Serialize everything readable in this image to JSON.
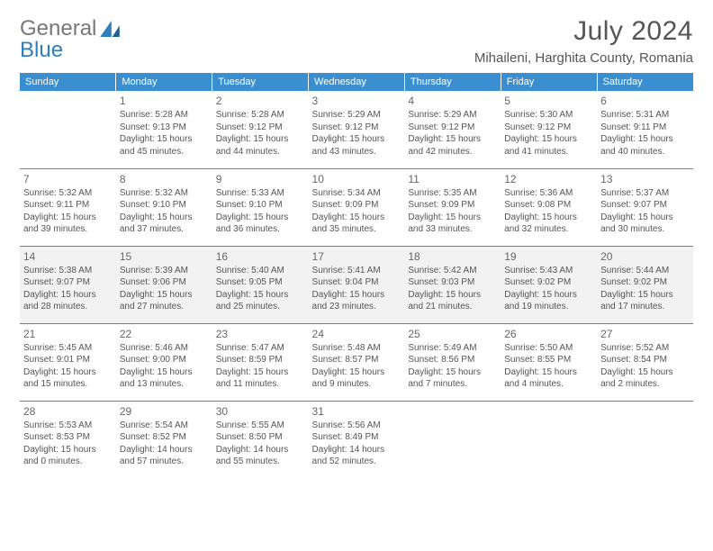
{
  "brand": {
    "text1": "General",
    "text2": "Blue"
  },
  "title": {
    "month": "July 2024",
    "location": "Mihaileni, Harghita County, Romania"
  },
  "colors": {
    "header_bg": "#3a8fd0",
    "divider": "#3a8fd0",
    "shade": "#f2f2f2",
    "text": "#555555"
  },
  "weekdays": [
    "Sunday",
    "Monday",
    "Tuesday",
    "Wednesday",
    "Thursday",
    "Friday",
    "Saturday"
  ],
  "weeks": [
    [
      null,
      {
        "n": "1",
        "sr": "Sunrise: 5:28 AM",
        "ss": "Sunset: 9:13 PM",
        "d1": "Daylight: 15 hours",
        "d2": "and 45 minutes."
      },
      {
        "n": "2",
        "sr": "Sunrise: 5:28 AM",
        "ss": "Sunset: 9:12 PM",
        "d1": "Daylight: 15 hours",
        "d2": "and 44 minutes."
      },
      {
        "n": "3",
        "sr": "Sunrise: 5:29 AM",
        "ss": "Sunset: 9:12 PM",
        "d1": "Daylight: 15 hours",
        "d2": "and 43 minutes."
      },
      {
        "n": "4",
        "sr": "Sunrise: 5:29 AM",
        "ss": "Sunset: 9:12 PM",
        "d1": "Daylight: 15 hours",
        "d2": "and 42 minutes."
      },
      {
        "n": "5",
        "sr": "Sunrise: 5:30 AM",
        "ss": "Sunset: 9:12 PM",
        "d1": "Daylight: 15 hours",
        "d2": "and 41 minutes."
      },
      {
        "n": "6",
        "sr": "Sunrise: 5:31 AM",
        "ss": "Sunset: 9:11 PM",
        "d1": "Daylight: 15 hours",
        "d2": "and 40 minutes."
      }
    ],
    [
      {
        "n": "7",
        "sr": "Sunrise: 5:32 AM",
        "ss": "Sunset: 9:11 PM",
        "d1": "Daylight: 15 hours",
        "d2": "and 39 minutes."
      },
      {
        "n": "8",
        "sr": "Sunrise: 5:32 AM",
        "ss": "Sunset: 9:10 PM",
        "d1": "Daylight: 15 hours",
        "d2": "and 37 minutes."
      },
      {
        "n": "9",
        "sr": "Sunrise: 5:33 AM",
        "ss": "Sunset: 9:10 PM",
        "d1": "Daylight: 15 hours",
        "d2": "and 36 minutes."
      },
      {
        "n": "10",
        "sr": "Sunrise: 5:34 AM",
        "ss": "Sunset: 9:09 PM",
        "d1": "Daylight: 15 hours",
        "d2": "and 35 minutes."
      },
      {
        "n": "11",
        "sr": "Sunrise: 5:35 AM",
        "ss": "Sunset: 9:09 PM",
        "d1": "Daylight: 15 hours",
        "d2": "and 33 minutes."
      },
      {
        "n": "12",
        "sr": "Sunrise: 5:36 AM",
        "ss": "Sunset: 9:08 PM",
        "d1": "Daylight: 15 hours",
        "d2": "and 32 minutes."
      },
      {
        "n": "13",
        "sr": "Sunrise: 5:37 AM",
        "ss": "Sunset: 9:07 PM",
        "d1": "Daylight: 15 hours",
        "d2": "and 30 minutes."
      }
    ],
    [
      {
        "n": "14",
        "sr": "Sunrise: 5:38 AM",
        "ss": "Sunset: 9:07 PM",
        "d1": "Daylight: 15 hours",
        "d2": "and 28 minutes."
      },
      {
        "n": "15",
        "sr": "Sunrise: 5:39 AM",
        "ss": "Sunset: 9:06 PM",
        "d1": "Daylight: 15 hours",
        "d2": "and 27 minutes."
      },
      {
        "n": "16",
        "sr": "Sunrise: 5:40 AM",
        "ss": "Sunset: 9:05 PM",
        "d1": "Daylight: 15 hours",
        "d2": "and 25 minutes."
      },
      {
        "n": "17",
        "sr": "Sunrise: 5:41 AM",
        "ss": "Sunset: 9:04 PM",
        "d1": "Daylight: 15 hours",
        "d2": "and 23 minutes."
      },
      {
        "n": "18",
        "sr": "Sunrise: 5:42 AM",
        "ss": "Sunset: 9:03 PM",
        "d1": "Daylight: 15 hours",
        "d2": "and 21 minutes."
      },
      {
        "n": "19",
        "sr": "Sunrise: 5:43 AM",
        "ss": "Sunset: 9:02 PM",
        "d1": "Daylight: 15 hours",
        "d2": "and 19 minutes."
      },
      {
        "n": "20",
        "sr": "Sunrise: 5:44 AM",
        "ss": "Sunset: 9:02 PM",
        "d1": "Daylight: 15 hours",
        "d2": "and 17 minutes."
      }
    ],
    [
      {
        "n": "21",
        "sr": "Sunrise: 5:45 AM",
        "ss": "Sunset: 9:01 PM",
        "d1": "Daylight: 15 hours",
        "d2": "and 15 minutes."
      },
      {
        "n": "22",
        "sr": "Sunrise: 5:46 AM",
        "ss": "Sunset: 9:00 PM",
        "d1": "Daylight: 15 hours",
        "d2": "and 13 minutes."
      },
      {
        "n": "23",
        "sr": "Sunrise: 5:47 AM",
        "ss": "Sunset: 8:59 PM",
        "d1": "Daylight: 15 hours",
        "d2": "and 11 minutes."
      },
      {
        "n": "24",
        "sr": "Sunrise: 5:48 AM",
        "ss": "Sunset: 8:57 PM",
        "d1": "Daylight: 15 hours",
        "d2": "and 9 minutes."
      },
      {
        "n": "25",
        "sr": "Sunrise: 5:49 AM",
        "ss": "Sunset: 8:56 PM",
        "d1": "Daylight: 15 hours",
        "d2": "and 7 minutes."
      },
      {
        "n": "26",
        "sr": "Sunrise: 5:50 AM",
        "ss": "Sunset: 8:55 PM",
        "d1": "Daylight: 15 hours",
        "d2": "and 4 minutes."
      },
      {
        "n": "27",
        "sr": "Sunrise: 5:52 AM",
        "ss": "Sunset: 8:54 PM",
        "d1": "Daylight: 15 hours",
        "d2": "and 2 minutes."
      }
    ],
    [
      {
        "n": "28",
        "sr": "Sunrise: 5:53 AM",
        "ss": "Sunset: 8:53 PM",
        "d1": "Daylight: 15 hours",
        "d2": "and 0 minutes."
      },
      {
        "n": "29",
        "sr": "Sunrise: 5:54 AM",
        "ss": "Sunset: 8:52 PM",
        "d1": "Daylight: 14 hours",
        "d2": "and 57 minutes."
      },
      {
        "n": "30",
        "sr": "Sunrise: 5:55 AM",
        "ss": "Sunset: 8:50 PM",
        "d1": "Daylight: 14 hours",
        "d2": "and 55 minutes."
      },
      {
        "n": "31",
        "sr": "Sunrise: 5:56 AM",
        "ss": "Sunset: 8:49 PM",
        "d1": "Daylight: 14 hours",
        "d2": "and 52 minutes."
      },
      null,
      null,
      null
    ]
  ]
}
